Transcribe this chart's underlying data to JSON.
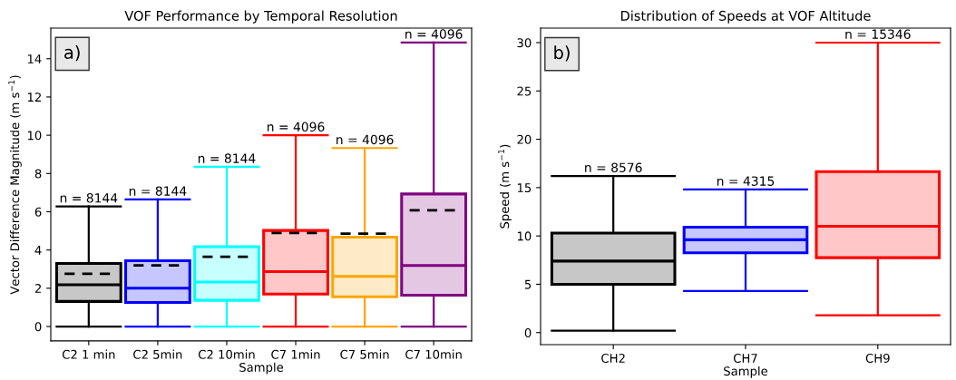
{
  "chart_data": [
    {
      "type": "box",
      "title": "VOF Performance by Temporal Resolution",
      "xlabel": "Sample",
      "ylabel": "Vector Difference Magnitude (m s$^{−1}$)",
      "categories": [
        "C2 1 min",
        "C2 5min",
        "C2 10min",
        "C7 1min",
        "C7 5min",
        "C7 10min"
      ],
      "colors": [
        "#000000",
        "#0000ff",
        "#00ffff",
        "#ff0000",
        "#ffa500",
        "#800080"
      ],
      "boxes": [
        {
          "low": 0,
          "q1": 1.31,
          "median": 2.18,
          "q3": 3.3,
          "high": 6.28,
          "mean": 2.76
        },
        {
          "low": 0,
          "q1": 1.26,
          "median": 2.0,
          "q3": 3.44,
          "high": 6.64,
          "mean": 3.2
        },
        {
          "low": 0,
          "q1": 1.37,
          "median": 2.32,
          "q3": 4.17,
          "high": 8.35,
          "mean": 3.65
        },
        {
          "low": 0,
          "q1": 1.7,
          "median": 2.87,
          "q3": 5.02,
          "high": 10.0,
          "mean": 4.89
        },
        {
          "low": 0,
          "q1": 1.55,
          "median": 2.62,
          "q3": 4.67,
          "high": 9.33,
          "mean": 4.86
        },
        {
          "low": 0,
          "q1": 1.64,
          "median": 3.19,
          "q3": 6.93,
          "high": 14.85,
          "mean": 6.08
        }
      ],
      "ylim": [
        -0.75,
        15.6
      ],
      "yticks": [
        0,
        2,
        4,
        6,
        8,
        10,
        12,
        14
      ],
      "annotations": [
        "a)",
        {
          "text": "n = 8144",
          "x": "C2 1 min",
          "y": 6.28
        },
        {
          "text": "n = 8144",
          "x": "C2 5min",
          "y": 6.64
        },
        {
          "text": "n = 8144",
          "x": "C2 10min",
          "y": 8.35
        },
        {
          "text": "n = 4096",
          "x": "C7 1min",
          "y": 10.0
        },
        {
          "text": "n = 4096",
          "x": "C7 5min",
          "y": 9.33
        },
        {
          "text": "n = 4096",
          "x": "C7 10min",
          "y": 14.85
        }
      ]
    },
    {
      "type": "box",
      "title": "Distribution of Speeds at VOF Altitude",
      "xlabel": "Sample",
      "ylabel": "Speed (m s$^{−1}$)",
      "categories": [
        "CH2",
        "CH7",
        "CH9"
      ],
      "colors": [
        "#000000",
        "#0000ff",
        "#ff0000"
      ],
      "boxes": [
        {
          "low": 0.2,
          "q1": 5.0,
          "median": 7.4,
          "q3": 10.3,
          "high": 16.2
        },
        {
          "low": 4.3,
          "q1": 8.25,
          "median": 9.6,
          "q3": 10.9,
          "high": 14.8
        },
        {
          "low": 1.8,
          "q1": 7.75,
          "median": 11.0,
          "q3": 16.65,
          "high": 30.0
        }
      ],
      "ylim": [
        -1.25,
        31.5
      ],
      "yticks": [
        0,
        5,
        10,
        15,
        20,
        25,
        30
      ],
      "annotations": [
        "b)",
        {
          "text": "n = 8576",
          "x": "CH2",
          "y": 16.2
        },
        {
          "text": "n = 4315",
          "x": "CH7",
          "y": 14.8
        },
        {
          "text": "n = 15346",
          "x": "CH9",
          "y": 30.0
        }
      ]
    }
  ]
}
